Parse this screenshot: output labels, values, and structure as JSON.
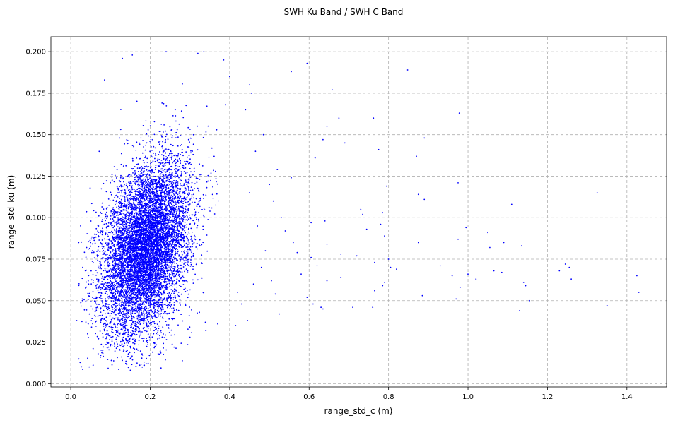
{
  "chart_data": {
    "type": "scatter",
    "title": "SWH Ku Band / SWH C Band",
    "xlabel": "range_std_c (m)",
    "ylabel": "range_std_ku (m)",
    "xlim": [
      -0.05,
      1.5
    ],
    "ylim": [
      -0.002,
      0.209
    ],
    "xticks": [
      0.0,
      0.2,
      0.4,
      0.6,
      0.8,
      1.0,
      1.2,
      1.4
    ],
    "xtick_labels": [
      "0.0",
      "0.2",
      "0.4",
      "0.6",
      "0.8",
      "1.0",
      "1.2",
      "1.4"
    ],
    "yticks": [
      0.0,
      0.025,
      0.05,
      0.075,
      0.1,
      0.125,
      0.15,
      0.175,
      0.2
    ],
    "ytick_labels": [
      "0.000",
      "0.025",
      "0.050",
      "0.075",
      "0.100",
      "0.125",
      "0.150",
      "0.175",
      "0.200"
    ],
    "grid": true,
    "marker_color": "#0000ff",
    "cluster": {
      "center": [
        0.19,
        0.082
      ],
      "std": [
        0.055,
        0.026
      ],
      "correlation": 0.35,
      "count": 9000
    },
    "points": [
      [
        0.555,
        0.188
      ],
      [
        0.595,
        0.193
      ],
      [
        0.848,
        0.189
      ],
      [
        0.658,
        0.177
      ],
      [
        0.978,
        0.163
      ],
      [
        0.762,
        0.16
      ],
      [
        0.675,
        0.16
      ],
      [
        0.645,
        0.155
      ],
      [
        0.89,
        0.148
      ],
      [
        0.635,
        0.147
      ],
      [
        0.69,
        0.145
      ],
      [
        0.775,
        0.141
      ],
      [
        0.87,
        0.137
      ],
      [
        0.615,
        0.136
      ],
      [
        0.52,
        0.129
      ],
      [
        0.555,
        0.124
      ],
      [
        0.795,
        0.119
      ],
      [
        0.975,
        0.121
      ],
      [
        1.325,
        0.115
      ],
      [
        0.875,
        0.114
      ],
      [
        0.89,
        0.111
      ],
      [
        1.11,
        0.108
      ],
      [
        0.73,
        0.105
      ],
      [
        0.735,
        0.102
      ],
      [
        0.785,
        0.103
      ],
      [
        0.64,
        0.098
      ],
      [
        0.605,
        0.097
      ],
      [
        0.78,
        0.096
      ],
      [
        0.995,
        0.094
      ],
      [
        0.745,
        0.093
      ],
      [
        1.05,
        0.091
      ],
      [
        0.79,
        0.089
      ],
      [
        0.975,
        0.087
      ],
      [
        0.875,
        0.085
      ],
      [
        1.09,
        0.085
      ],
      [
        1.135,
        0.083
      ],
      [
        0.645,
        0.084
      ],
      [
        1.055,
        0.082
      ],
      [
        0.68,
        0.078
      ],
      [
        0.72,
        0.077
      ],
      [
        0.605,
        0.076
      ],
      [
        0.8,
        0.075
      ],
      [
        0.765,
        0.073
      ],
      [
        0.805,
        0.07
      ],
      [
        0.82,
        0.069
      ],
      [
        0.93,
        0.071
      ],
      [
        1.245,
        0.072
      ],
      [
        1.255,
        0.07
      ],
      [
        1.065,
        0.068
      ],
      [
        1.23,
        0.068
      ],
      [
        1.085,
        0.067
      ],
      [
        1.0,
        0.066
      ],
      [
        0.96,
        0.065
      ],
      [
        1.425,
        0.065
      ],
      [
        1.02,
        0.063
      ],
      [
        1.26,
        0.063
      ],
      [
        0.645,
        0.062
      ],
      [
        0.68,
        0.064
      ],
      [
        1.14,
        0.061
      ],
      [
        0.79,
        0.061
      ],
      [
        1.145,
        0.059
      ],
      [
        0.785,
        0.059
      ],
      [
        0.98,
        0.058
      ],
      [
        0.765,
        0.056
      ],
      [
        1.43,
        0.055
      ],
      [
        0.885,
        0.053
      ],
      [
        0.97,
        0.051
      ],
      [
        1.155,
        0.05
      ],
      [
        0.61,
        0.048
      ],
      [
        1.35,
        0.047
      ],
      [
        0.63,
        0.046
      ],
      [
        0.71,
        0.046
      ],
      [
        0.76,
        0.046
      ],
      [
        0.635,
        0.045
      ],
      [
        1.13,
        0.044
      ],
      [
        0.595,
        0.052
      ],
      [
        0.58,
        0.066
      ],
      [
        0.62,
        0.071
      ],
      [
        0.56,
        0.085
      ],
      [
        0.57,
        0.079
      ],
      [
        0.54,
        0.092
      ],
      [
        0.53,
        0.1
      ],
      [
        0.51,
        0.11
      ],
      [
        0.5,
        0.12
      ],
      [
        0.49,
        0.08
      ],
      [
        0.505,
        0.062
      ],
      [
        0.515,
        0.054
      ],
      [
        0.525,
        0.042
      ],
      [
        0.48,
        0.07
      ],
      [
        0.47,
        0.095
      ],
      [
        0.46,
        0.06
      ],
      [
        0.45,
        0.115
      ],
      [
        0.465,
        0.14
      ],
      [
        0.485,
        0.15
      ],
      [
        0.455,
        0.175
      ],
      [
        0.45,
        0.18
      ],
      [
        0.44,
        0.165
      ],
      [
        0.43,
        0.048
      ],
      [
        0.42,
        0.055
      ],
      [
        0.415,
        0.035
      ],
      [
        0.445,
        0.038
      ],
      [
        0.4,
        0.185
      ],
      [
        0.385,
        0.195
      ],
      [
        0.335,
        0.2
      ],
      [
        0.32,
        0.199
      ],
      [
        0.24,
        0.2
      ],
      [
        0.155,
        0.198
      ],
      [
        0.13,
        0.196
      ],
      [
        0.085,
        0.183
      ],
      [
        0.07,
        0.095
      ],
      [
        0.06,
        0.09
      ],
      [
        0.05,
        0.085
      ],
      [
        0.04,
        0.082
      ],
      [
        0.03,
        0.07
      ],
      [
        0.055,
        0.045
      ],
      [
        0.045,
        0.06
      ],
      [
        0.02,
        0.085
      ],
      [
        0.015,
        0.038
      ],
      [
        0.07,
        0.027
      ],
      [
        0.095,
        0.022
      ],
      [
        0.13,
        0.014
      ],
      [
        0.18,
        0.01
      ],
      [
        0.19,
        0.012
      ],
      [
        0.22,
        0.018
      ],
      [
        0.26,
        0.022
      ],
      [
        0.3,
        0.028
      ],
      [
        0.34,
        0.032
      ],
      [
        0.37,
        0.036
      ]
    ]
  }
}
